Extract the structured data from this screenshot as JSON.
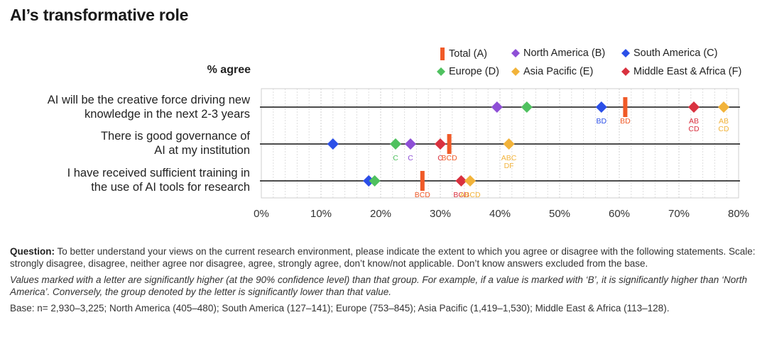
{
  "title": "AI’s transformative role",
  "chart_data": {
    "type": "scatter",
    "ylabel": "% agree",
    "xlim": [
      0,
      80
    ],
    "x_ticks": [
      "0%",
      "10%",
      "20%",
      "30%",
      "40%",
      "50%",
      "60%",
      "70%",
      "80%"
    ],
    "x_tick_values": [
      0,
      10,
      20,
      30,
      40,
      50,
      60,
      70,
      80
    ],
    "legend_position": "top-right",
    "series": [
      {
        "name": "Total (A)",
        "key": "total",
        "marker": "bar",
        "color": "#f05a28"
      },
      {
        "name": "North America (B)",
        "key": "na",
        "marker": "diamond",
        "color": "#8e4fd6"
      },
      {
        "name": "South America (C)",
        "key": "sa",
        "marker": "diamond",
        "color": "#2b4fe8"
      },
      {
        "name": "Europe (D)",
        "key": "eu",
        "marker": "diamond",
        "color": "#4fc15f"
      },
      {
        "name": "Asia Pacific (E)",
        "key": "ap",
        "marker": "diamond",
        "color": "#f2b33a"
      },
      {
        "name": "Middle East & Africa (F)",
        "key": "mea",
        "marker": "diamond",
        "color": "#d9313f"
      }
    ],
    "rows": [
      {
        "label": [
          "AI will be the creative force driving new",
          "knowledge in the next 2-3 years"
        ],
        "values": {
          "total": 61,
          "na": 39.5,
          "sa": 57,
          "eu": 44.5,
          "ap": 77.5,
          "mea": 72.5
        },
        "sig": [
          {
            "series": "sa",
            "text": "BD"
          },
          {
            "series": "total",
            "text": "BD"
          },
          {
            "series": "mea",
            "text": "AB CD"
          },
          {
            "series": "ap",
            "text": "AB CD"
          }
        ]
      },
      {
        "label": [
          "There is good governance of",
          "AI at my institution"
        ],
        "values": {
          "total": 31.5,
          "na": 25,
          "sa": 12,
          "eu": 22.5,
          "ap": 41.5,
          "mea": 30
        },
        "sig": [
          {
            "series": "eu",
            "text": "C"
          },
          {
            "series": "na",
            "text": "C"
          },
          {
            "series": "mea",
            "text": "C"
          },
          {
            "series": "total",
            "text": "BCD"
          },
          {
            "series": "ap",
            "text": "ABC DF"
          }
        ]
      },
      {
        "label": [
          "I have received sufficient training in",
          "the use of AI tools for research"
        ],
        "values": {
          "total": 27,
          "na": 18,
          "sa": 18,
          "eu": 19,
          "ap": 35,
          "mea": 33.5
        },
        "sig": [
          {
            "series": "total",
            "text": "BCD"
          },
          {
            "series": "mea",
            "text": "BCD"
          },
          {
            "series": "ap",
            "text": "ABCD"
          }
        ]
      }
    ]
  },
  "notes": {
    "question_label": "Question:",
    "question_text": " To better understand your views on the current research environment, please indicate the extent to which you agree or disagree with the following statements. Scale: strongly disagree, disagree, neither agree nor disagree, agree, strongly agree, don’t know/not applicable. Don’t know answers excluded from the base.",
    "significance": "Values marked with a letter are significantly higher (at the 90% confidence level) than that group. For example, if a value is marked with ‘B’, it is significantly higher than ‘North America’. Conversely, the group denoted by the letter is significantly lower than that value.",
    "base": "Base: n= 2,930–3,225; North America (405–480); South America (127–141); Europe (753–845); Asia Pacific (1,419–1,530); Middle East & Africa (113–128)."
  }
}
